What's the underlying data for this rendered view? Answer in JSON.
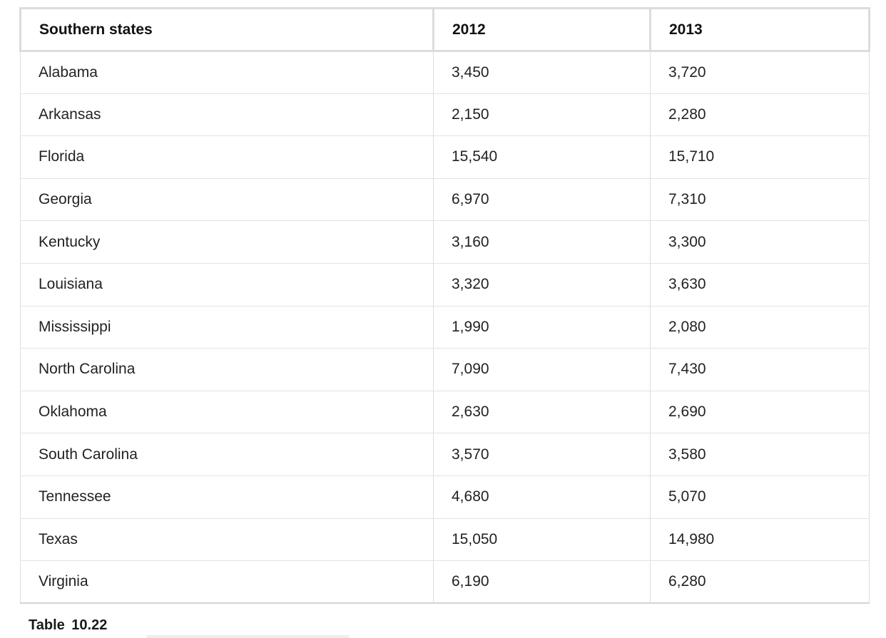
{
  "table": {
    "headers": [
      "Southern states",
      "2012",
      "2013"
    ],
    "rows": [
      [
        "Alabama",
        "3,450",
        "3,720"
      ],
      [
        "Arkansas",
        "2,150",
        "2,280"
      ],
      [
        "Florida",
        "15,540",
        "15,710"
      ],
      [
        "Georgia",
        "6,970",
        "7,310"
      ],
      [
        "Kentucky",
        "3,160",
        "3,300"
      ],
      [
        "Louisiana",
        "3,320",
        "3,630"
      ],
      [
        "Mississippi",
        "1,990",
        "2,080"
      ],
      [
        "North Carolina",
        "7,090",
        "7,430"
      ],
      [
        "Oklahoma",
        "2,630",
        "2,690"
      ],
      [
        "South Carolina",
        "3,570",
        "3,580"
      ],
      [
        "Tennessee",
        "4,680",
        "5,070"
      ],
      [
        "Texas",
        "15,050",
        "14,980"
      ],
      [
        "Virginia",
        "6,190",
        "6,280"
      ]
    ]
  },
  "caption": "Table 10.22"
}
